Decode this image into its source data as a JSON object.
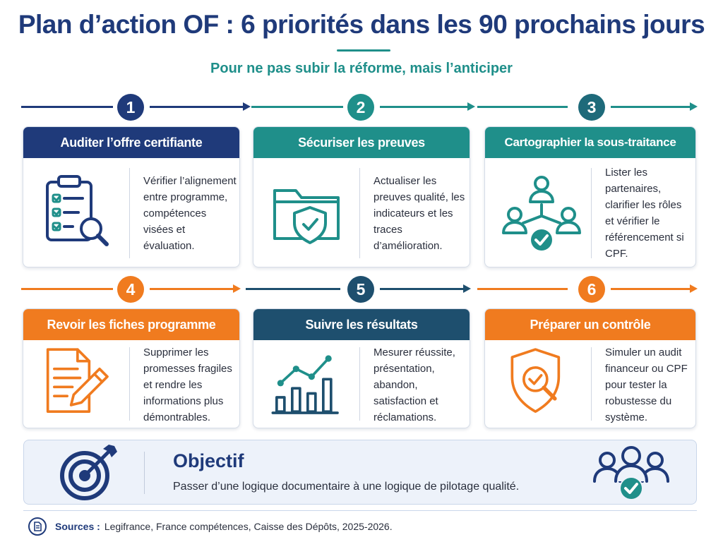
{
  "header": {
    "title": "Plan d’action OF : 6 priorités dans les 90 prochains jours",
    "subtitle": "Pour ne pas subir la réforme, mais l’anticiper"
  },
  "colors": {
    "navy": "#1f3a7a",
    "teal": "#1f8f8a",
    "orange": "#f07b1f",
    "dark_teal": "#1e4f6e"
  },
  "steps": [
    {
      "number": "1",
      "title": "Auditer l’offre certifiante",
      "text": "Vérifier l’alignement entre programme, compétences visées et évaluation.",
      "icon": "clipboard-checklist-icon",
      "color": "#1f3a7a"
    },
    {
      "number": "2",
      "title": "Sécuriser les preuves",
      "text": "Actualiser les preuves qualité, les indicateurs et les traces d’amélioration.",
      "icon": "folder-shield-icon",
      "color": "#1f8f8a"
    },
    {
      "number": "3",
      "title": "Cartographier la sous-traitance",
      "text": "Lister les partenaires, clarifier les rôles et vérifier le référencement si CPF.",
      "icon": "network-people-icon",
      "color": "#1f8f8a"
    },
    {
      "number": "4",
      "title": "Revoir les fiches programme",
      "text": "Supprimer les promesses fragiles et rendre les informations plus démontrables.",
      "icon": "document-pencil-icon",
      "color": "#f07b1f"
    },
    {
      "number": "5",
      "title": "Suivre les résultats",
      "text": "Mesurer réussite, présentation, abandon, satisfaction et réclamations.",
      "icon": "bar-chart-icon",
      "color": "#1e4f6e"
    },
    {
      "number": "6",
      "title": "Préparer un contrôle",
      "text": "Simuler un audit financeur ou CPF pour tester la robustesse du système.",
      "icon": "shield-magnifier-icon",
      "color": "#f07b1f"
    }
  ],
  "objective": {
    "title": "Objectif",
    "text": "Passer d’une logique documentaire à une logique de pilotage qualité.",
    "icon": "target-icon",
    "people_icon": "team-check-icon"
  },
  "footer": {
    "label": "Sources :",
    "text": "Legifrance, France compétences, Caisse des Dépôts, 2025-2026.",
    "icon": "document-icon"
  }
}
